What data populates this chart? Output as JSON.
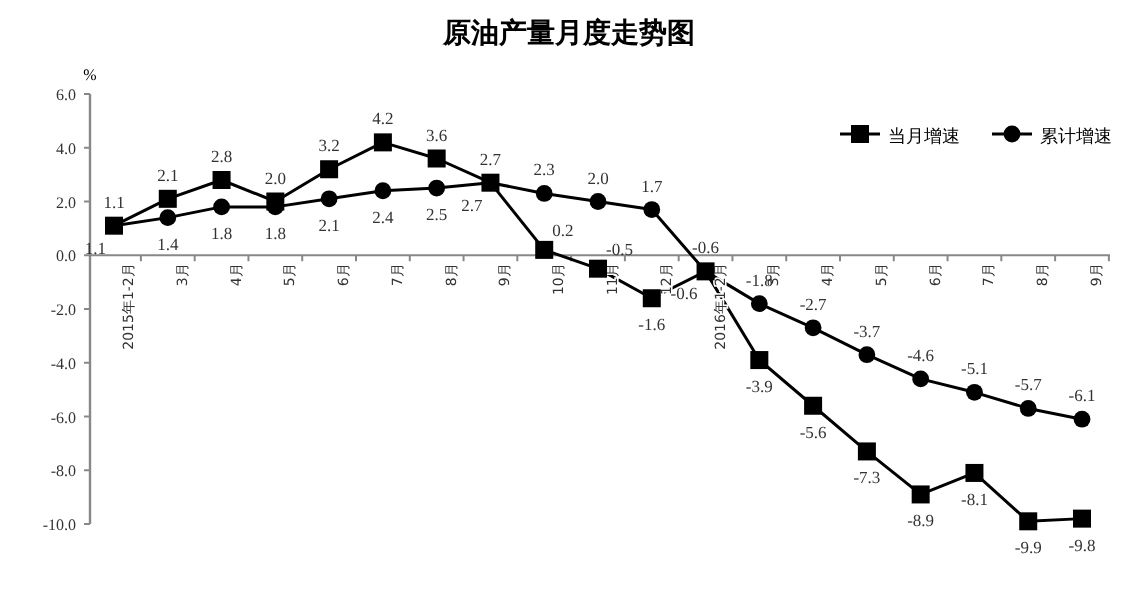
{
  "chart_data": {
    "type": "line",
    "title": "原油产量月度走势图",
    "ylabel": "%",
    "categories": [
      "2015年1-2月",
      "3月",
      "4月",
      "5月",
      "6月",
      "7月",
      "8月",
      "9月",
      "10月",
      "11月",
      "12月",
      "2016年1-2月",
      "3月",
      "4月",
      "5月",
      "6月",
      "7月",
      "8月",
      "9月"
    ],
    "series": [
      {
        "name": "当月增速",
        "color": "#000000",
        "marker": "square",
        "values": [
          1.1,
          2.1,
          2.8,
          2.0,
          3.2,
          4.2,
          3.6,
          2.7,
          0.2,
          -0.5,
          -1.6,
          -0.6,
          -3.9,
          -5.6,
          -7.3,
          -8.9,
          -8.1,
          -9.9,
          -9.8
        ],
        "value_labels": [
          "1.1",
          "2.1",
          "2.8",
          "2.0",
          "3.2",
          "4.2",
          "3.6",
          "2.7",
          "0.2",
          "-0.5",
          "-1.6",
          "-0.6",
          "-3.9",
          "-5.6",
          "-7.3",
          "-8.9",
          "-8.1",
          "-9.9",
          "-9.8"
        ]
      },
      {
        "name": "累计增速",
        "color": "#000000",
        "marker": "circle",
        "values": [
          1.1,
          1.4,
          1.8,
          1.8,
          2.1,
          2.4,
          2.5,
          2.7,
          2.3,
          2.0,
          1.7,
          -0.6,
          -1.8,
          -2.7,
          -3.7,
          -4.6,
          -5.1,
          -5.7,
          -6.1
        ],
        "value_labels": [
          "1.1",
          "1.4",
          "1.8",
          "1.8",
          "2.1",
          "2.4",
          "2.5",
          "2.7",
          "2.3",
          "2.0",
          "1.7",
          "-0.6",
          "-1.8",
          "-2.7",
          "-3.7",
          "-4.6",
          "-5.1",
          "-5.7",
          "-6.1"
        ]
      }
    ],
    "ylim": [
      -10,
      6
    ],
    "yticks": [
      {
        "value": -10,
        "label": "-10.0"
      },
      {
        "value": -8,
        "label": "-8.0"
      },
      {
        "value": -6,
        "label": "-6.0"
      },
      {
        "value": -4,
        "label": "-4.0"
      },
      {
        "value": -2,
        "label": "-2.0"
      },
      {
        "value": 0,
        "label": "0.0"
      },
      {
        "value": 2,
        "label": "2.0"
      },
      {
        "value": 4,
        "label": "4.0"
      },
      {
        "value": 6,
        "label": "6.0"
      }
    ],
    "legend": "top right",
    "grid": false,
    "line_style": "solid"
  }
}
